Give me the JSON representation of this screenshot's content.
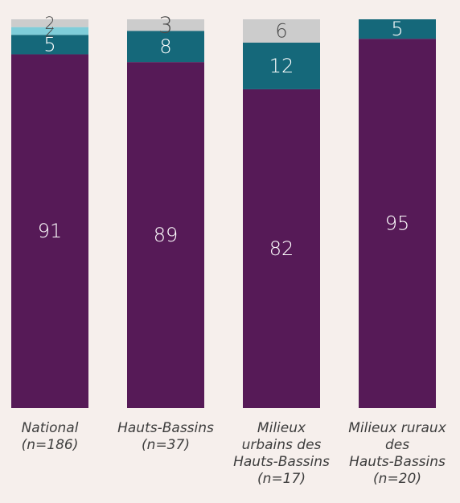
{
  "chart_data": {
    "type": "bar",
    "stacked": true,
    "categories": [
      [
        "National",
        "(n=186)"
      ],
      [
        "Hauts-Bassins",
        "(n=37)"
      ],
      [
        "Milieux",
        "urbains des",
        "Hauts-Bassins",
        "(n=17)"
      ],
      [
        "Milieux ruraux",
        "des",
        "Hauts-Bassins",
        "(n=20)"
      ]
    ],
    "series": [
      {
        "values": [
          91,
          89,
          82,
          95
        ],
        "color": "#561a57"
      },
      {
        "values": [
          5,
          8,
          12,
          5
        ],
        "color": "#15687a"
      },
      {
        "values": [
          2,
          0,
          0,
          0
        ],
        "color": "#7fcdd9"
      },
      {
        "values": [
          2,
          3,
          6,
          0
        ],
        "color": "#cccccc"
      }
    ],
    "ylim": [
      0,
      100
    ],
    "grid": false,
    "legend": "none"
  }
}
